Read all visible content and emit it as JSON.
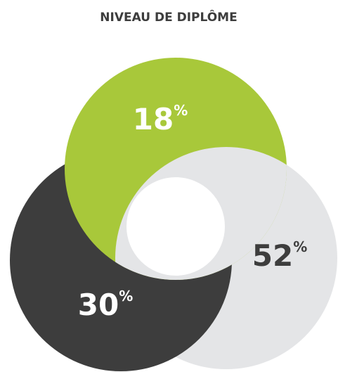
{
  "chart_data": {
    "type": "bubble-trio",
    "title": "NIVEAU DE DIPLÔME",
    "values": [
      18,
      30,
      52
    ],
    "value_labels": [
      "18%",
      "30%",
      "52%"
    ],
    "colors": [
      "#a8c83a",
      "#3d3d3d",
      "#e4e5e7"
    ],
    "label_colors": [
      "#ffffff",
      "#ffffff",
      "#3d3d3d"
    ]
  }
}
